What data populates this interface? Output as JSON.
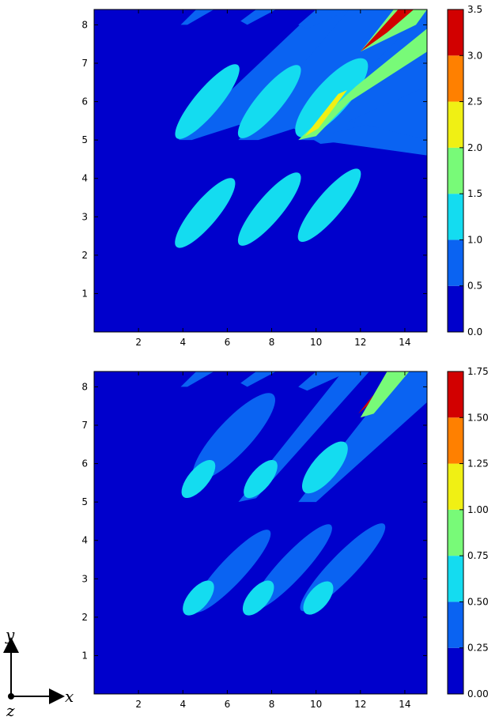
{
  "chart_data": [
    {
      "type": "heatmap",
      "title": "",
      "xlabel": "",
      "ylabel": "",
      "xlim": [
        0,
        15
      ],
      "ylim": [
        0,
        8.4
      ],
      "xticks": [
        2,
        4,
        6,
        8,
        10,
        12,
        14
      ],
      "yticks": [
        1,
        2,
        3,
        4,
        5,
        6,
        7,
        8
      ],
      "colorbar": {
        "levels": [
          0.0,
          0.5,
          1.0,
          1.5,
          2.0,
          2.5,
          3.0,
          3.5
        ],
        "labels": [
          "0.0",
          "0.5",
          "1.0",
          "1.5",
          "2.0",
          "2.5",
          "3.0",
          "3.5"
        ],
        "colors": [
          "#0000cc",
          "#0a63f2",
          "#14dcf0",
          "#78fa78",
          "#f0f014",
          "#ff8000",
          "#d20000"
        ]
      },
      "regions": [
        {
          "name": "wake-band-1",
          "level": 1,
          "points": [
            [
              3.8,
              5.0
            ],
            [
              10.0,
              8.4
            ],
            [
              12.5,
              8.4
            ],
            [
              8.2,
              5.7
            ],
            [
              4.4,
              5.0
            ]
          ]
        },
        {
          "name": "wake-band-2",
          "level": 1,
          "points": [
            [
              6.5,
              5.0
            ],
            [
              11.5,
              8.4
            ],
            [
              15.0,
              8.4
            ],
            [
              15.0,
              5.2
            ],
            [
              10.2,
              4.9
            ],
            [
              9.0,
              5.3
            ],
            [
              7.4,
              5.0
            ]
          ]
        },
        {
          "name": "wake-band-3",
          "level": 1,
          "points": [
            [
              9.2,
              5.0
            ],
            [
              15.0,
              8.4
            ],
            [
              15.0,
              5.2
            ],
            [
              10.0,
              5.0
            ]
          ]
        },
        {
          "name": "wake-band-4",
          "level": 1,
          "points": [
            [
              9.5,
              5.0
            ],
            [
              15.0,
              5.8
            ],
            [
              15.0,
              4.6
            ],
            [
              10.0,
              5.0
            ]
          ]
        },
        {
          "name": "wake-band-5",
          "level": 1,
          "points": [
            [
              11.5,
              5.5
            ],
            [
              15.0,
              6.4
            ],
            [
              15.0,
              5.0
            ]
          ]
        },
        {
          "name": "band-top-1",
          "level": 1,
          "points": [
            [
              3.9,
              8.0
            ],
            [
              4.6,
              8.4
            ],
            [
              5.4,
              8.4
            ],
            [
              4.2,
              8.0
            ]
          ]
        },
        {
          "name": "band-top-2",
          "level": 1,
          "points": [
            [
              6.6,
              8.1
            ],
            [
              7.3,
              8.4
            ],
            [
              8.2,
              8.4
            ],
            [
              6.9,
              8.0
            ]
          ]
        },
        {
          "name": "band-top-3",
          "level": 1,
          "points": [
            [
              9.2,
              8.0
            ],
            [
              10.0,
              8.4
            ],
            [
              11.5,
              8.4
            ],
            [
              9.6,
              7.9
            ]
          ]
        },
        {
          "name": "mid-ellipse-1",
          "level": 2,
          "cx": 5.1,
          "cy": 6.0,
          "rx": 2.15,
          "ry": 0.15,
          "angle": -50
        },
        {
          "name": "mid-ellipse-2",
          "level": 2,
          "cx": 7.9,
          "cy": 6.0,
          "rx": 2.1,
          "ry": 0.15,
          "angle": -50
        },
        {
          "name": "mid-ellipse-3",
          "level": 2,
          "cx": 10.7,
          "cy": 6.1,
          "rx": 2.3,
          "ry": 0.2,
          "angle": -48
        },
        {
          "name": "low-ellipse-1",
          "level": 2,
          "cx": 5.0,
          "cy": 3.1,
          "rx": 2.0,
          "ry": 0.15,
          "angle": -50
        },
        {
          "name": "low-ellipse-2",
          "level": 2,
          "cx": 7.9,
          "cy": 3.2,
          "rx": 2.1,
          "ry": 0.15,
          "angle": -50
        },
        {
          "name": "low-ellipse-3",
          "level": 2,
          "cx": 10.6,
          "cy": 3.3,
          "rx": 2.1,
          "ry": 0.15,
          "angle": -50
        },
        {
          "name": "wake-core-1",
          "level": 3,
          "points": [
            [
              9.2,
              5.0
            ],
            [
              11.8,
              6.4
            ],
            [
              15.0,
              7.9
            ],
            [
              15.0,
              7.3
            ],
            [
              11.5,
              6.0
            ],
            [
              10.0,
              5.1
            ]
          ]
        },
        {
          "name": "wake-core-2",
          "level": 4,
          "points": [
            [
              9.5,
              5.1
            ],
            [
              11.0,
              6.2
            ],
            [
              11.4,
              6.3
            ],
            [
              10.1,
              5.3
            ]
          ]
        },
        {
          "name": "wake-core-3",
          "level": 3,
          "points": [
            [
              12.0,
              7.3
            ],
            [
              13.5,
              8.4
            ],
            [
              15.0,
              8.4
            ],
            [
              14.5,
              8.0
            ]
          ]
        },
        {
          "name": "hot-core",
          "level": 6,
          "points": [
            [
              12.0,
              7.3
            ],
            [
              13.7,
              8.4
            ],
            [
              14.4,
              8.4
            ],
            [
              13.2,
              7.8
            ]
          ]
        }
      ]
    },
    {
      "type": "heatmap",
      "title": "",
      "xlabel": "",
      "ylabel": "",
      "xlim": [
        0,
        15
      ],
      "ylim": [
        0,
        8.4
      ],
      "xticks": [
        2,
        4,
        6,
        8,
        10,
        12,
        14
      ],
      "yticks": [
        1,
        2,
        3,
        4,
        5,
        6,
        7,
        8
      ],
      "colorbar": {
        "levels": [
          0.0,
          0.25,
          0.5,
          0.75,
          1.0,
          1.25,
          1.5,
          1.75
        ],
        "labels": [
          "0.00",
          "0.25",
          "0.50",
          "0.75",
          "1.00",
          "1.25",
          "1.50",
          "1.75"
        ],
        "colors": [
          "#0000cc",
          "#0a63f2",
          "#14dcf0",
          "#78fa78",
          "#f0f014",
          "#ff8000",
          "#d20000"
        ]
      },
      "regions": [
        {
          "name": "band-mid-1",
          "level": 1,
          "cx": 6.3,
          "cy": 6.7,
          "rx": 2.6,
          "ry": 0.2,
          "angle": -47
        },
        {
          "name": "band-mid-2",
          "level": 1,
          "points": [
            [
              6.5,
              5.0
            ],
            [
              11.2,
              8.4
            ],
            [
              12.4,
              8.4
            ],
            [
              7.3,
              5.1
            ]
          ]
        },
        {
          "name": "band-mid-3",
          "level": 1,
          "points": [
            [
              9.2,
              5.0
            ],
            [
              13.8,
              8.4
            ],
            [
              15.0,
              8.4
            ],
            [
              15.0,
              7.6
            ],
            [
              10.0,
              5.0
            ]
          ]
        },
        {
          "name": "band-low-1",
          "level": 1,
          "cx": 6.2,
          "cy": 3.2,
          "rx": 2.5,
          "ry": 0.15,
          "angle": -47
        },
        {
          "name": "band-low-2",
          "level": 1,
          "cx": 8.9,
          "cy": 3.3,
          "rx": 2.6,
          "ry": 0.15,
          "angle": -47
        },
        {
          "name": "band-low-3",
          "level": 1,
          "cx": 11.2,
          "cy": 3.3,
          "rx": 2.7,
          "ry": 0.15,
          "angle": -46
        },
        {
          "name": "band-top-1",
          "level": 1,
          "points": [
            [
              3.9,
              8.0
            ],
            [
              4.6,
              8.4
            ],
            [
              5.4,
              8.4
            ],
            [
              4.2,
              8.0
            ]
          ]
        },
        {
          "name": "band-top-2",
          "level": 1,
          "points": [
            [
              6.6,
              8.1
            ],
            [
              7.3,
              8.4
            ],
            [
              8.2,
              8.4
            ],
            [
              6.9,
              8.0
            ]
          ]
        },
        {
          "name": "band-top-3",
          "level": 1,
          "points": [
            [
              9.2,
              8.0
            ],
            [
              10.0,
              8.4
            ],
            [
              11.5,
              8.4
            ],
            [
              9.6,
              7.9
            ]
          ]
        },
        {
          "name": "core-mid-1",
          "level": 2,
          "cx": 4.7,
          "cy": 5.6,
          "rx": 1.05,
          "ry": 0.12,
          "angle": -50
        },
        {
          "name": "core-mid-2",
          "level": 2,
          "cx": 7.5,
          "cy": 5.6,
          "rx": 1.05,
          "ry": 0.12,
          "angle": -50
        },
        {
          "name": "core-mid-3",
          "level": 2,
          "cx": 10.4,
          "cy": 5.9,
          "rx": 1.45,
          "ry": 0.15,
          "angle": -50
        },
        {
          "name": "core-low-1",
          "level": 2,
          "cx": 4.7,
          "cy": 2.5,
          "rx": 0.95,
          "ry": 0.12,
          "angle": -50
        },
        {
          "name": "core-low-2",
          "level": 2,
          "cx": 7.4,
          "cy": 2.5,
          "rx": 0.95,
          "ry": 0.12,
          "angle": -50
        },
        {
          "name": "core-low-3",
          "level": 2,
          "cx": 10.1,
          "cy": 2.5,
          "rx": 0.9,
          "ry": 0.12,
          "angle": -50
        },
        {
          "name": "core-top-right",
          "level": 3,
          "points": [
            [
              12.0,
              7.2
            ],
            [
              13.2,
              8.4
            ],
            [
              14.2,
              8.4
            ],
            [
              12.6,
              7.3
            ]
          ]
        },
        {
          "name": "hot-core",
          "level": 6,
          "points": [
            [
              11.9,
              7.3
            ],
            [
              12.6,
              7.8
            ],
            [
              12.3,
              7.5
            ]
          ]
        }
      ]
    }
  ],
  "axes_indicator": {
    "y": "y",
    "x": "x",
    "z": "z"
  }
}
